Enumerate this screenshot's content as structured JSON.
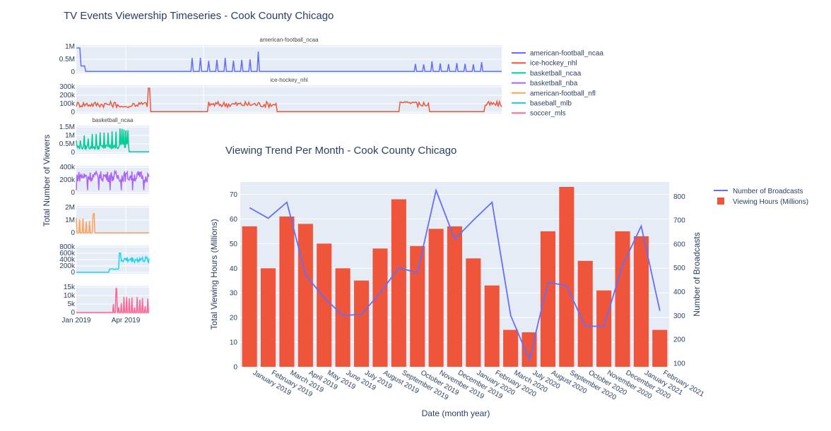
{
  "page": {
    "title": "TV Events Viewership Timeseries - Cook County Chicago",
    "left_ylabel": "Total Number of Viewers"
  },
  "colors": {
    "american-football_ncaa": "#636efa",
    "ice-hockey_nhl": "#EF553B",
    "basketball_ncaa": "#00cc96",
    "basketball_nba": "#ab63fa",
    "american-football_nfl": "#FFA15A",
    "baseball_mlb": "#19d3f3",
    "soccer_mls": "#FF6692",
    "bar": "#EF553B",
    "line": "#636efa",
    "plotbg": "#e5ecf6"
  },
  "chart_data": [
    {
      "type": "line",
      "id": "timeseries",
      "title": "TV Events Viewership Timeseries - Cook County Chicago",
      "ylabel": "Total Number of Viewers",
      "x_ticks": [
        "Jan 2019",
        "Apr 2019"
      ],
      "legend": [
        "american-football_ncaa",
        "ice-hockey_nhl",
        "basketball_ncaa",
        "basketball_nba",
        "american-football_nfl",
        "baseball_mlb",
        "soccer_mls"
      ],
      "panels": [
        {
          "name": "american-football_ncaa",
          "subtitle": "american-football_ncaa",
          "yticks": [
            "1M",
            "0.5M",
            "0"
          ],
          "ymax": 1000000
        },
        {
          "name": "ice-hockey_nhl",
          "subtitle": "ice-hockey_nhl",
          "yticks": [
            "300k",
            "200k",
            "100k",
            "0"
          ],
          "ymax": 300000
        },
        {
          "name": "basketball_ncaa",
          "subtitle": "basketball_ncaa",
          "yticks": [
            "1.5M",
            "1M",
            "0.5M",
            "0"
          ],
          "ymax": 1500000
        },
        {
          "name": "basketball_nba",
          "subtitle": "",
          "yticks": [
            "400k",
            "200k",
            "0"
          ],
          "ymax": 400000
        },
        {
          "name": "american-football_nfl",
          "subtitle": "",
          "yticks": [
            "2M",
            "1M",
            "0"
          ],
          "ymax": 2000000
        },
        {
          "name": "baseball_mlb",
          "subtitle": "",
          "yticks": [
            "800k",
            "600k",
            "400k",
            "200k",
            "0"
          ],
          "ymax": 800000
        },
        {
          "name": "soccer_mls",
          "subtitle": "",
          "yticks": [
            "15k",
            "10k",
            "5k",
            "0"
          ],
          "ymax": 15000
        }
      ]
    },
    {
      "type": "bar",
      "id": "monthly",
      "title": "Viewing Trend Per Month - Cook County Chicago",
      "xlabel": "Date (month year)",
      "ylabel": "Total Viewing Hours (Millions)",
      "y2label": "Number of Broadcasts",
      "ylim": [
        0,
        75
      ],
      "y2lim": [
        85,
        860
      ],
      "yticks": [
        0,
        10,
        20,
        30,
        40,
        50,
        60,
        70
      ],
      "y2ticks": [
        100,
        200,
        300,
        400,
        500,
        600,
        700,
        800
      ],
      "categories": [
        "January 2019",
        "February 2019",
        "March 2019",
        "April 2019",
        "May 2019",
        "June 2019",
        "July 2019",
        "August 2019",
        "September 2019",
        "October 2019",
        "November 2019",
        "December 2019",
        "January 2020",
        "February 2020",
        "March 2020",
        "July 2020",
        "August 2020",
        "September 2020",
        "October 2020",
        "November 2020",
        "December 2020",
        "January 2021",
        "February 2021"
      ],
      "series": [
        {
          "name": "Viewing Hours (Millions)",
          "type": "bar",
          "axis": "left",
          "values": [
            57,
            40,
            61,
            58,
            50,
            40,
            35,
            48,
            68,
            49,
            56,
            57,
            44,
            33,
            15,
            14,
            55,
            73,
            43,
            31,
            55,
            53,
            15
          ]
        },
        {
          "name": "Number of Broadcasts",
          "type": "line",
          "axis": "right",
          "values": [
            752,
            708,
            775,
            470,
            375,
            300,
            305,
            395,
            500,
            480,
            825,
            620,
            700,
            775,
            300,
            115,
            440,
            425,
            255,
            255,
            510,
            675,
            320
          ]
        }
      ],
      "legend": [
        "Number of Broadcasts",
        "Viewing Hours (Millions)"
      ]
    }
  ]
}
